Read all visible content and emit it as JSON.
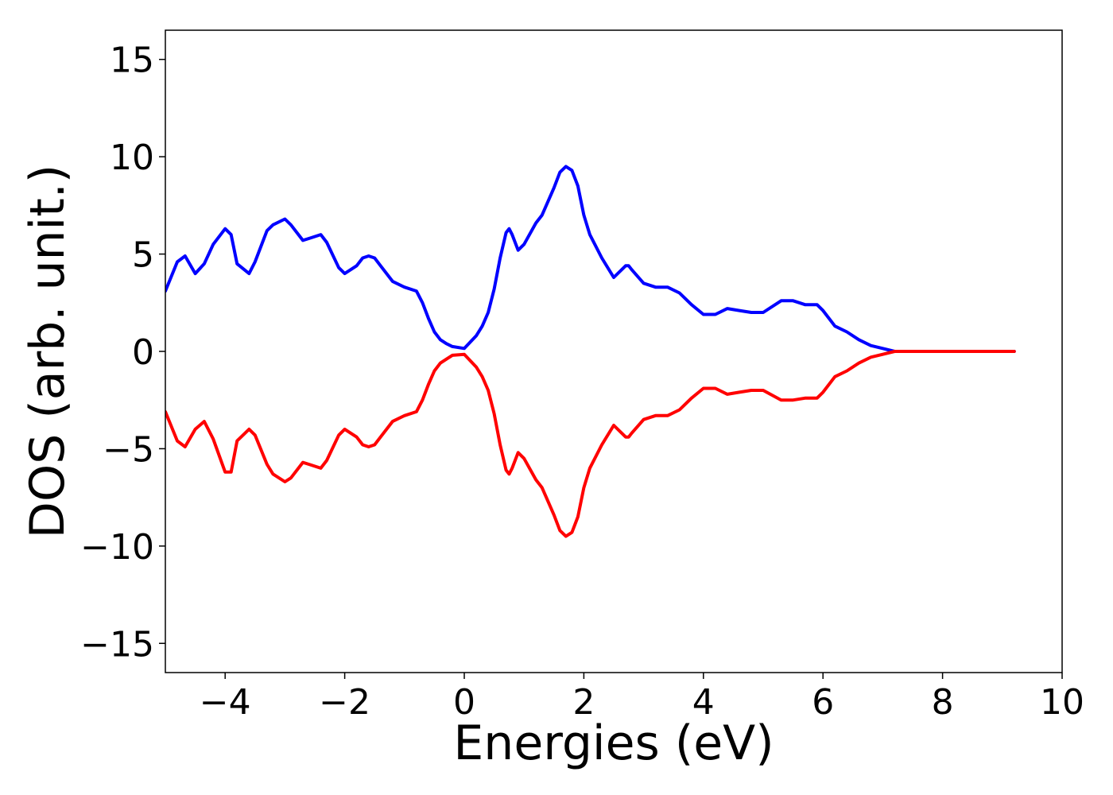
{
  "chart_data": {
    "type": "line",
    "title": "",
    "xlabel": "Energies (eV)",
    "ylabel": "DOS (arb. unit.)",
    "xlim": [
      -5,
      10
    ],
    "ylim": [
      -16.5,
      16.5
    ],
    "xticks": [
      -4,
      -2,
      0,
      2,
      4,
      6,
      8,
      10
    ],
    "yticks": [
      -15,
      -10,
      -5,
      0,
      5,
      10,
      15
    ],
    "xtick_labels": [
      "−4",
      "−2",
      "0",
      "2",
      "4",
      "6",
      "8",
      "10"
    ],
    "ytick_labels": [
      "−15",
      "−10",
      "−5",
      "0",
      "5",
      "10",
      "15"
    ],
    "grid": false,
    "legend": "none",
    "series": [
      {
        "color": "#0000ff",
        "x": [
          -5.0,
          -4.8,
          -4.67,
          -4.5,
          -4.35,
          -4.2,
          -4.0,
          -3.9,
          -3.8,
          -3.6,
          -3.5,
          -3.3,
          -3.2,
          -3.0,
          -2.9,
          -2.7,
          -2.6,
          -2.4,
          -2.3,
          -2.1,
          -2.0,
          -1.8,
          -1.7,
          -1.6,
          -1.5,
          -1.4,
          -1.2,
          -1.0,
          -0.8,
          -0.7,
          -0.6,
          -0.5,
          -0.4,
          -0.3,
          -0.2,
          0.0,
          0.2,
          0.3,
          0.4,
          0.5,
          0.6,
          0.7,
          0.75,
          0.8,
          0.9,
          1.0,
          1.2,
          1.3,
          1.5,
          1.6,
          1.7,
          1.8,
          1.9,
          2.0,
          2.1,
          2.3,
          2.5,
          2.7,
          2.75,
          2.8,
          3.0,
          3.2,
          3.4,
          3.6,
          3.8,
          4.0,
          4.2,
          4.4,
          4.6,
          4.8,
          5.0,
          5.3,
          5.5,
          5.7,
          5.8,
          5.9,
          6.0,
          6.2,
          6.4,
          6.6,
          6.8,
          7.0,
          7.2,
          8.0,
          9.2
        ],
        "y": [
          3.1,
          4.6,
          4.9,
          4.0,
          4.5,
          5.5,
          6.3,
          6.0,
          4.5,
          4.0,
          4.6,
          6.2,
          6.5,
          6.8,
          6.5,
          5.7,
          5.8,
          6.0,
          5.6,
          4.3,
          4.0,
          4.4,
          4.8,
          4.9,
          4.8,
          4.4,
          3.6,
          3.3,
          3.1,
          2.5,
          1.7,
          1.0,
          0.6,
          0.4,
          0.25,
          0.15,
          0.8,
          1.3,
          2.0,
          3.2,
          4.8,
          6.1,
          6.3,
          6.0,
          5.2,
          5.5,
          6.6,
          7.0,
          8.4,
          9.2,
          9.5,
          9.3,
          8.5,
          7.0,
          6.0,
          4.8,
          3.8,
          4.4,
          4.4,
          4.2,
          3.5,
          3.3,
          3.3,
          3.0,
          2.4,
          1.9,
          1.9,
          2.2,
          2.1,
          2.0,
          2.0,
          2.6,
          2.6,
          2.4,
          2.4,
          2.4,
          2.1,
          1.3,
          1.0,
          0.6,
          0.3,
          0.15,
          0.0,
          0.0,
          0.0
        ]
      },
      {
        "color": "#ff0000",
        "x": [
          -5.0,
          -4.8,
          -4.67,
          -4.5,
          -4.35,
          -4.2,
          -4.0,
          -3.9,
          -3.8,
          -3.6,
          -3.5,
          -3.3,
          -3.2,
          -3.0,
          -2.9,
          -2.7,
          -2.6,
          -2.4,
          -2.3,
          -2.1,
          -2.0,
          -1.8,
          -1.7,
          -1.6,
          -1.5,
          -1.4,
          -1.2,
          -1.0,
          -0.8,
          -0.7,
          -0.6,
          -0.5,
          -0.4,
          -0.3,
          -0.2,
          0.0,
          0.2,
          0.3,
          0.4,
          0.5,
          0.6,
          0.7,
          0.75,
          0.8,
          0.9,
          1.0,
          1.2,
          1.3,
          1.5,
          1.6,
          1.7,
          1.8,
          1.9,
          2.0,
          2.1,
          2.3,
          2.5,
          2.7,
          2.75,
          2.8,
          3.0,
          3.2,
          3.4,
          3.6,
          3.8,
          4.0,
          4.2,
          4.4,
          4.6,
          4.8,
          5.0,
          5.3,
          5.5,
          5.7,
          5.8,
          5.9,
          6.0,
          6.2,
          6.4,
          6.6,
          6.8,
          7.0,
          7.2,
          8.0,
          9.2
        ],
        "y": [
          -3.1,
          -4.6,
          -4.9,
          -4.0,
          -3.6,
          -4.5,
          -6.2,
          -6.2,
          -4.6,
          -4.0,
          -4.3,
          -5.8,
          -6.3,
          -6.7,
          -6.5,
          -5.7,
          -5.8,
          -6.0,
          -5.6,
          -4.3,
          -4.0,
          -4.4,
          -4.8,
          -4.9,
          -4.8,
          -4.4,
          -3.6,
          -3.3,
          -3.1,
          -2.5,
          -1.7,
          -1.0,
          -0.6,
          -0.4,
          -0.2,
          -0.15,
          -0.8,
          -1.3,
          -2.0,
          -3.2,
          -4.8,
          -6.1,
          -6.3,
          -6.0,
          -5.2,
          -5.5,
          -6.6,
          -7.0,
          -8.4,
          -9.2,
          -9.5,
          -9.3,
          -8.5,
          -7.0,
          -6.0,
          -4.8,
          -3.8,
          -4.4,
          -4.4,
          -4.2,
          -3.5,
          -3.3,
          -3.3,
          -3.0,
          -2.4,
          -1.9,
          -1.9,
          -2.2,
          -2.1,
          -2.0,
          -2.0,
          -2.5,
          -2.5,
          -2.4,
          -2.4,
          -2.4,
          -2.1,
          -1.3,
          -1.0,
          -0.6,
          -0.3,
          -0.15,
          0.0,
          0.0,
          0.0
        ]
      }
    ]
  }
}
